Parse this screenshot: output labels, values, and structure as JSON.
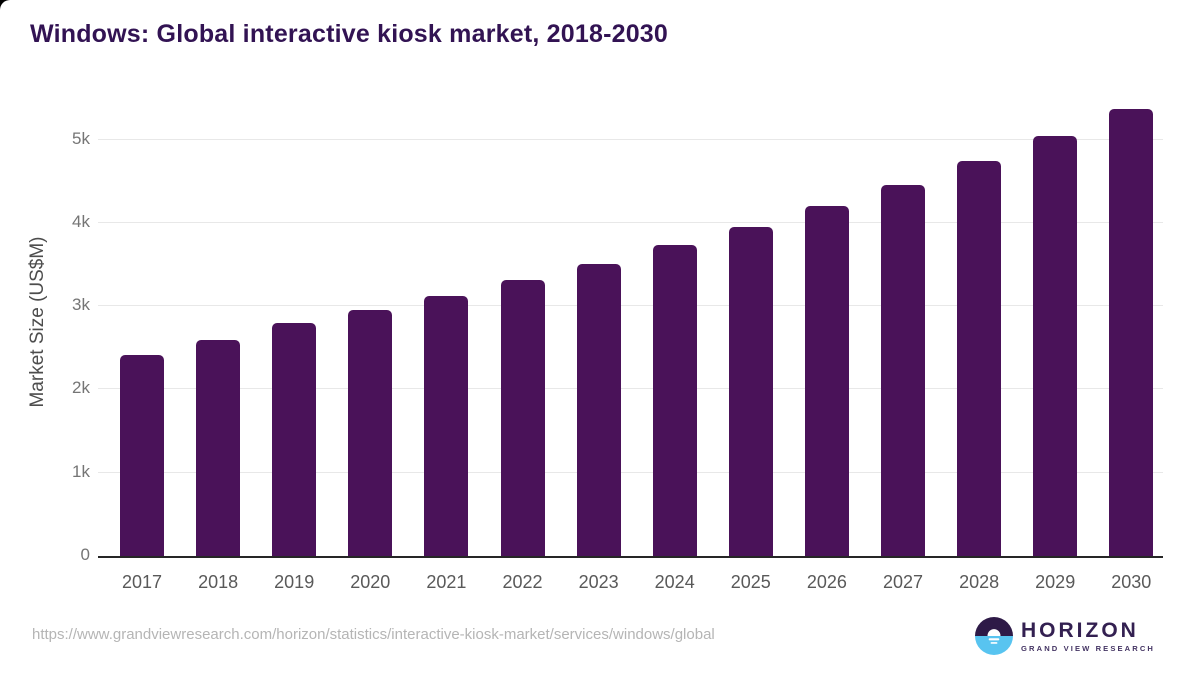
{
  "header": {
    "title": "Windows: Global interactive kiosk market, 2018-2030"
  },
  "chart_data": {
    "type": "bar",
    "title": "Windows: Global interactive kiosk market, 2018-2030",
    "categories": [
      "2017",
      "2018",
      "2019",
      "2020",
      "2021",
      "2022",
      "2023",
      "2024",
      "2025",
      "2026",
      "2027",
      "2028",
      "2029",
      "2030"
    ],
    "values": [
      2410,
      2590,
      2800,
      2950,
      3120,
      3310,
      3510,
      3730,
      3950,
      4200,
      4460,
      4740,
      5040,
      5370
    ],
    "xlabel": "",
    "ylabel": "Market Size (US$M)",
    "unit": "US$M",
    "ylim": [
      0,
      5500
    ],
    "yticks": [
      {
        "value": 0,
        "label": "0"
      },
      {
        "value": 1000,
        "label": "1k"
      },
      {
        "value": 2000,
        "label": "2k"
      },
      {
        "value": 3000,
        "label": "3k"
      },
      {
        "value": 4000,
        "label": "4k"
      },
      {
        "value": 5000,
        "label": "5k"
      }
    ],
    "grid": true,
    "legend": false,
    "bar_color": "#4a1259"
  },
  "footer": {
    "source_url": "https://www.grandviewresearch.com/horizon/statistics/interactive-kiosk-market/services/windows/global",
    "logo": {
      "brand": "HORIZON",
      "tagline": "GRAND VIEW RESEARCH"
    }
  },
  "colors": {
    "bar": "#4a1259",
    "title_text": "#321353",
    "axis_line": "#262626",
    "gridline": "#e8e8e8",
    "y_tick_label": "#757575",
    "x_tick_label": "#595959",
    "url_text": "#b5b5b5",
    "logo_purple": "#2e1a47",
    "logo_blue": "#58c4f0"
  }
}
